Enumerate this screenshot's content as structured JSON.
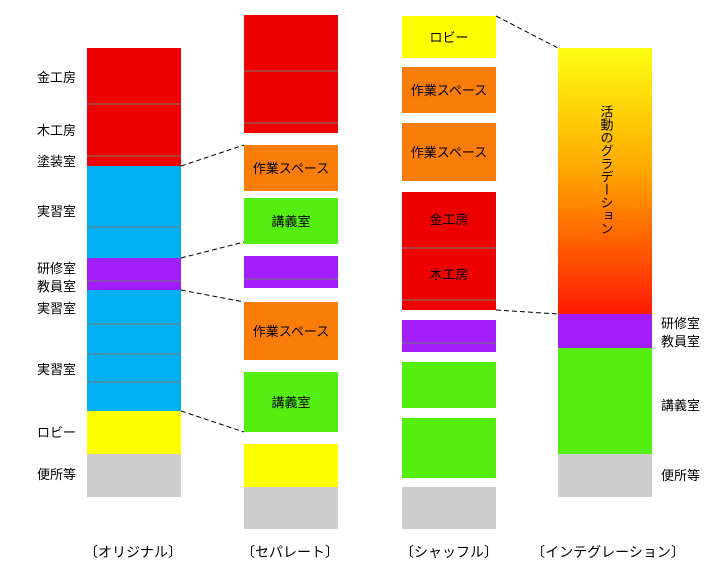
{
  "labels": {
    "kinkobo": "金工房",
    "mokkobo": "木工房",
    "tosoushitsu": "塗装室",
    "jisshushitsu": "実習室",
    "kenshushitsu": "研修室",
    "kyoinshitsu": "教員室",
    "lobby": "ロビー",
    "toilet": "便所等",
    "sagyo_space": "作業スペース",
    "kogishitsu": "講義室",
    "gradation": "活動のグラデーション"
  },
  "captions": {
    "original": "〔オリジナル〕",
    "separate": "〔セパレート〕",
    "shuffle": "〔シャッフル〕",
    "integration": "〔インテグレーション〕"
  },
  "colors": {
    "red": "#ee0000",
    "blue": "#00b0f0",
    "purple": "#a21dfa",
    "yellow": "#ffff00",
    "gray": "#cdcdcd",
    "orange": "#fa7d0a",
    "green": "#55ee11",
    "divider": "#777777"
  }
}
